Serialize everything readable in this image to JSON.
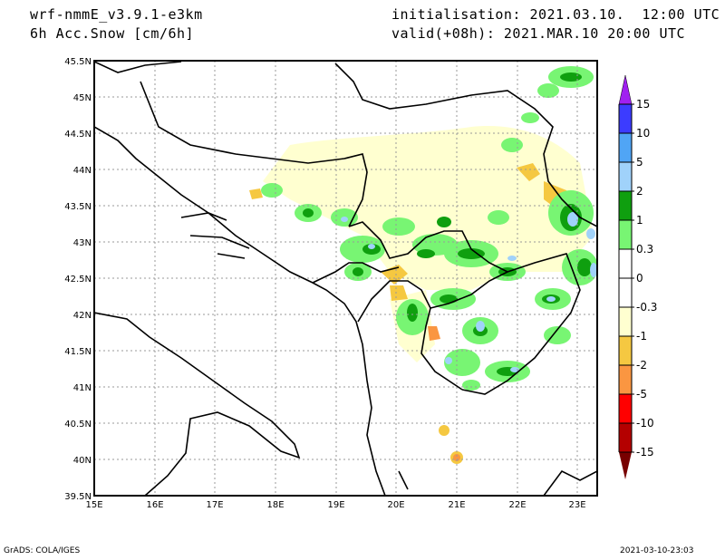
{
  "header": {
    "model": "wrf-nmmE_v3.9.1-e3km",
    "variable": "6h Acc.Snow [cm/6h]",
    "initialisation": "initialisation: 2021.03.10.  12:00 UTC",
    "valid": "valid(+08h): 2021.MAR.10 20:00 UTC"
  },
  "map": {
    "lon_labels": [
      "15E",
      "16E",
      "17E",
      "18E",
      "19E",
      "20E",
      "21E",
      "22E",
      "23E"
    ],
    "lat_labels": [
      "45.5N",
      "45N",
      "44.5N",
      "44N",
      "43.5N",
      "43N",
      "42.5N",
      "42N",
      "41.5N",
      "41N",
      "40.5N",
      "40N",
      "39.5N"
    ]
  },
  "colorbar": {
    "levels": [
      "15",
      "10",
      "5",
      "2",
      "1",
      "0.3",
      "0",
      "-0.3",
      "-1",
      "-2",
      "-5",
      "-10",
      "-15"
    ],
    "colors": [
      "#a020f0",
      "#3c3cff",
      "#50a5f5",
      "#a0d2fa",
      "#0f9f0f",
      "#78f573",
      "#ffffff",
      "#ffffff",
      "#ffffd0",
      "#f5c841",
      "#fa9641",
      "#ff0000",
      "#b40000",
      "#780000"
    ]
  },
  "footer": {
    "left": "GrADS: COLA/IGES",
    "right": "2021-03-10-23:03"
  }
}
